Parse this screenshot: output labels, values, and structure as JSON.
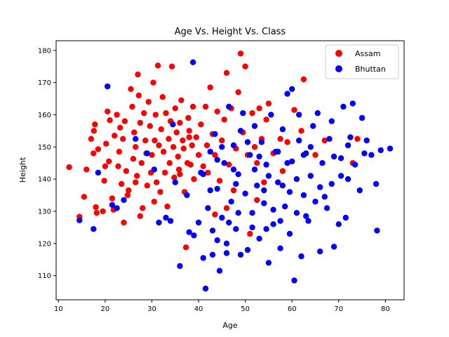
{
  "chart_data": {
    "type": "scatter",
    "title": "Age Vs. Height Vs. Class",
    "xlabel": "Age",
    "ylabel": "Height",
    "xlim": [
      9.5,
      84
    ],
    "ylim": [
      102.5,
      183
    ],
    "xticks": [
      10,
      20,
      30,
      40,
      50,
      60,
      70,
      80
    ],
    "yticks": [
      110,
      120,
      130,
      140,
      150,
      160,
      170,
      180
    ],
    "grid": false,
    "legend_position": "top-right",
    "series": [
      {
        "name": "Assam",
        "color": "#ff0000",
        "points": [
          [
            12.3,
            143.7
          ],
          [
            14.5,
            128.3
          ],
          [
            15.5,
            134.5
          ],
          [
            16.0,
            143.0
          ],
          [
            17.0,
            152.5
          ],
          [
            17.6,
            155.0
          ],
          [
            17.8,
            157.0
          ],
          [
            17.5,
            148.0
          ],
          [
            18.0,
            131.3
          ],
          [
            18.2,
            129.5
          ],
          [
            18.5,
            149.3
          ],
          [
            19.5,
            130.0
          ],
          [
            19.8,
            139.5
          ],
          [
            20.0,
            144.0
          ],
          [
            20.2,
            151.0
          ],
          [
            20.5,
            161.0
          ],
          [
            20.8,
            145.5
          ],
          [
            21.0,
            158.3
          ],
          [
            21.5,
            134.0
          ],
          [
            21.8,
            130.5
          ],
          [
            22.0,
            153.5
          ],
          [
            22.5,
            160.0
          ],
          [
            22.8,
            144.0
          ],
          [
            23.0,
            148.5
          ],
          [
            23.2,
            156.0
          ],
          [
            23.5,
            138.5
          ],
          [
            23.8,
            152.5
          ],
          [
            24.0,
            126.5
          ],
          [
            24.2,
            158.0
          ],
          [
            24.5,
            142.5
          ],
          [
            24.8,
            135.0
          ],
          [
            25.0,
            136.5
          ],
          [
            25.5,
            168.0
          ],
          [
            25.8,
            162.5
          ],
          [
            26.0,
            146.3
          ],
          [
            26.2,
            154.5
          ],
          [
            26.5,
            150.0
          ],
          [
            26.8,
            141.0
          ],
          [
            27.0,
            172.5
          ],
          [
            27.2,
            166.0
          ],
          [
            27.5,
            157.5
          ],
          [
            27.8,
            145.0
          ],
          [
            28.0,
            131.0
          ],
          [
            28.3,
            160.5
          ],
          [
            28.6,
            152.0
          ],
          [
            28.8,
            148.0
          ],
          [
            29.0,
            138.0
          ],
          [
            29.3,
            164.0
          ],
          [
            29.6,
            156.5
          ],
          [
            29.8,
            142.0
          ],
          [
            30.0,
            147.5
          ],
          [
            30.3,
            170.0
          ],
          [
            30.6,
            152.0
          ],
          [
            30.8,
            160.0
          ],
          [
            31.0,
            139.0
          ],
          [
            31.3,
            175.3
          ],
          [
            31.5,
            150.5
          ],
          [
            31.8,
            136.0
          ],
          [
            32.0,
            155.5
          ],
          [
            32.3,
            165.5
          ],
          [
            32.5,
            148.5
          ],
          [
            32.8,
            142.0
          ],
          [
            33.0,
            160.5
          ],
          [
            33.3,
            131.5
          ],
          [
            33.6,
            152.5
          ],
          [
            33.8,
            145.0
          ],
          [
            34.0,
            158.0
          ],
          [
            34.3,
            175.0
          ],
          [
            34.6,
            150.0
          ],
          [
            34.8,
            140.5
          ],
          [
            35.0,
            162.0
          ],
          [
            35.3,
            154.5
          ],
          [
            35.6,
            147.0
          ],
          [
            35.8,
            143.0
          ],
          [
            36.0,
            157.5
          ],
          [
            36.3,
            164.5
          ],
          [
            36.6,
            152.0
          ],
          [
            36.8,
            149.5
          ],
          [
            37.0,
            136.0
          ],
          [
            37.3,
            118.8
          ],
          [
            37.6,
            145.0
          ],
          [
            37.8,
            159.0
          ],
          [
            38.0,
            155.0
          ],
          [
            38.3,
            144.5
          ],
          [
            38.6,
            150.5
          ],
          [
            38.8,
            162.5
          ],
          [
            39.0,
            140.0
          ],
          [
            39.5,
            153.0
          ],
          [
            40.0,
            147.5
          ],
          [
            40.5,
            157.0
          ],
          [
            41.0,
            144.0
          ],
          [
            41.5,
            162.5
          ],
          [
            41.8,
            150.5
          ],
          [
            42.0,
            142.0
          ],
          [
            42.5,
            168.5
          ],
          [
            43.0,
            154.0
          ],
          [
            43.5,
            147.5
          ],
          [
            44.0,
            161.0
          ],
          [
            44.5,
            139.5
          ],
          [
            45.0,
            152.0
          ],
          [
            45.5,
            158.5
          ],
          [
            46.0,
            173.0
          ],
          [
            46.5,
            144.5
          ],
          [
            47.0,
            162.0
          ],
          [
            47.5,
            136.5
          ],
          [
            48.0,
            149.5
          ],
          [
            48.5,
            167.0
          ],
          [
            49.0,
            179.0
          ],
          [
            49.5,
            154.5
          ],
          [
            50.0,
            175.0
          ],
          [
            50.5,
            147.5
          ],
          [
            51.0,
            123.0
          ],
          [
            51.5,
            160.5
          ],
          [
            52.0,
            150.0
          ],
          [
            52.5,
            145.0
          ],
          [
            53.0,
            162.0
          ],
          [
            53.5,
            152.5
          ],
          [
            54.0,
            139.0
          ],
          [
            54.5,
            158.5
          ],
          [
            55.0,
            163.5
          ],
          [
            56.0,
            148.0
          ],
          [
            57.5,
            152.5
          ],
          [
            58.0,
            142.5
          ],
          [
            59.0,
            151.5
          ],
          [
            60.5,
            161.5
          ],
          [
            62.0,
            155.0
          ],
          [
            62.5,
            171.0
          ],
          [
            65.0,
            147.5
          ],
          [
            67.0,
            152.0
          ],
          [
            73.0,
            145.0
          ],
          [
            74.0,
            152.5
          ],
          [
            38.0,
            153.0
          ],
          [
            36.0,
            141.5
          ],
          [
            26.5,
            139.0
          ],
          [
            27.5,
            128.5
          ],
          [
            30.5,
            133.0
          ],
          [
            43.5,
            129.0
          ],
          [
            46.0,
            131.0
          ],
          [
            52.5,
            133.5
          ]
        ]
      },
      {
        "name": "Bhuttan",
        "color": "#0000ff",
        "points": [
          [
            14.5,
            127.2
          ],
          [
            17.5,
            124.5
          ],
          [
            18.5,
            142.0
          ],
          [
            20.5,
            168.8
          ],
          [
            21.5,
            132.0
          ],
          [
            22.5,
            131.0
          ],
          [
            24.0,
            133.5
          ],
          [
            26.5,
            152.5
          ],
          [
            29.0,
            148.0
          ],
          [
            30.5,
            143.0
          ],
          [
            31.5,
            126.5
          ],
          [
            33.0,
            128.0
          ],
          [
            34.0,
            127.0
          ],
          [
            34.5,
            157.0
          ],
          [
            35.0,
            139.0
          ],
          [
            36.0,
            113.0
          ],
          [
            37.5,
            135.0
          ],
          [
            38.0,
            123.5
          ],
          [
            38.8,
            176.3
          ],
          [
            39.0,
            122.5
          ],
          [
            40.0,
            126.5
          ],
          [
            40.5,
            142.0
          ],
          [
            41.0,
            115.5
          ],
          [
            41.5,
            106.0
          ],
          [
            42.0,
            131.0
          ],
          [
            42.5,
            148.5
          ],
          [
            43.0,
            116.5
          ],
          [
            43.5,
            154.0
          ],
          [
            44.0,
            137.0
          ],
          [
            44.5,
            111.5
          ],
          [
            45.0,
            128.0
          ],
          [
            45.5,
            145.0
          ],
          [
            46.0,
            117.0
          ],
          [
            46.5,
            162.5
          ],
          [
            47.0,
            133.0
          ],
          [
            47.5,
            150.5
          ],
          [
            48.0,
            124.5
          ],
          [
            48.5,
            141.5
          ],
          [
            49.0,
            116.5
          ],
          [
            49.5,
            160.5
          ],
          [
            50.0,
            135.5
          ],
          [
            50.5,
            118.0
          ],
          [
            51.0,
            147.5
          ],
          [
            51.5,
            129.5
          ],
          [
            52.0,
            156.5
          ],
          [
            52.5,
            138.0
          ],
          [
            53.0,
            121.5
          ],
          [
            53.5,
            151.5
          ],
          [
            54.0,
            132.5
          ],
          [
            54.5,
            144.5
          ],
          [
            55.0,
            114.0
          ],
          [
            55.5,
            160.0
          ],
          [
            56.0,
            126.0
          ],
          [
            56.5,
            148.5
          ],
          [
            57.0,
            139.0
          ],
          [
            57.5,
            118.5
          ],
          [
            58.0,
            155.5
          ],
          [
            58.5,
            131.5
          ],
          [
            59.0,
            145.0
          ],
          [
            59.5,
            123.0
          ],
          [
            60.0,
            168.0
          ],
          [
            60.5,
            108.5
          ],
          [
            61.0,
            140.0
          ],
          [
            61.5,
            152.0
          ],
          [
            62.0,
            116.0
          ],
          [
            62.5,
            135.0
          ],
          [
            63.0,
            148.0
          ],
          [
            63.5,
            127.0
          ],
          [
            64.0,
            141.0
          ],
          [
            64.5,
            156.5
          ],
          [
            65.0,
            133.0
          ],
          [
            66.0,
            117.5
          ],
          [
            66.5,
            145.0
          ],
          [
            67.5,
            131.0
          ],
          [
            68.0,
            152.5
          ],
          [
            68.5,
            138.5
          ],
          [
            69.0,
            119.0
          ],
          [
            70.0,
            126.0
          ],
          [
            70.5,
            146.5
          ],
          [
            71.0,
            162.5
          ],
          [
            71.5,
            128.0
          ],
          [
            72.0,
            140.0
          ],
          [
            72.5,
            153.0
          ],
          [
            73.0,
            163.5
          ],
          [
            73.5,
            144.5
          ],
          [
            74.5,
            136.5
          ],
          [
            75.0,
            159.0
          ],
          [
            76.0,
            152.0
          ],
          [
            77.0,
            147.5
          ],
          [
            78.0,
            138.5
          ],
          [
            78.2,
            124.0
          ],
          [
            79.0,
            149.0
          ],
          [
            81.0,
            149.5
          ],
          [
            59.0,
            166.5
          ],
          [
            61.5,
            160.0
          ],
          [
            65.5,
            160.5
          ],
          [
            69.0,
            147.0
          ],
          [
            72.0,
            150.5
          ],
          [
            75.5,
            148.0
          ],
          [
            63.0,
            128.5
          ],
          [
            66.0,
            137.5
          ],
          [
            56.0,
            130.5
          ],
          [
            54.0,
            136.5
          ],
          [
            52.0,
            143.0
          ],
          [
            48.0,
            138.5
          ],
          [
            46.0,
            120.0
          ],
          [
            57.0,
            148.5
          ],
          [
            60.0,
            145.5
          ],
          [
            62.5,
            147.5
          ],
          [
            64.0,
            150.0
          ],
          [
            58.0,
            138.0
          ],
          [
            55.0,
            141.0
          ],
          [
            53.0,
            147.0
          ],
          [
            50.5,
            151.5
          ],
          [
            49.0,
            155.0
          ],
          [
            47.5,
            143.0
          ],
          [
            45.0,
            150.0
          ],
          [
            44.0,
            146.0
          ],
          [
            42.5,
            136.5
          ],
          [
            41.0,
            141.5
          ],
          [
            67.0,
            134.5
          ],
          [
            68.5,
            158.0
          ],
          [
            70.5,
            141.0
          ],
          [
            61.0,
            129.5
          ],
          [
            59.5,
            136.0
          ],
          [
            57.5,
            127.0
          ],
          [
            54.5,
            124.5
          ],
          [
            51.5,
            125.0
          ],
          [
            48.5,
            129.5
          ],
          [
            46.5,
            126.5
          ],
          [
            44.0,
            121.0
          ],
          [
            43.0,
            124.0
          ]
        ]
      }
    ]
  }
}
